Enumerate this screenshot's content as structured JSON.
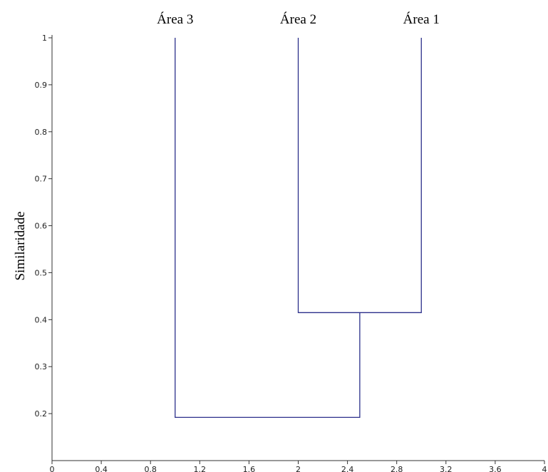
{
  "chart_data": {
    "type": "dendrogram",
    "ylabel": "Similaridade",
    "xlabel": "",
    "xlim": [
      0,
      4
    ],
    "ylim": [
      0.1,
      1
    ],
    "x_ticks": [
      "0",
      "0.4",
      "0.8",
      "1.2",
      "1.6",
      "2",
      "2.4",
      "2.8",
      "3.2",
      "3.6",
      "4"
    ],
    "x_tick_values": [
      0,
      0.4,
      0.8,
      1.2,
      1.6,
      2,
      2.4,
      2.8,
      3.2,
      3.6,
      4
    ],
    "y_ticks": [
      "0.2",
      "0.3",
      "0.4",
      "0.5",
      "0.6",
      "0.7",
      "0.8",
      "0.9",
      "1"
    ],
    "y_tick_values": [
      0.2,
      0.3,
      0.4,
      0.5,
      0.6,
      0.7,
      0.8,
      0.9,
      1
    ],
    "leaves": [
      {
        "label": "Área 3",
        "x": 1
      },
      {
        "label": "Área 2",
        "x": 2
      },
      {
        "label": "Área 1",
        "x": 3
      }
    ],
    "merges": [
      {
        "left_x": 2,
        "right_x": 3,
        "left_top": 1,
        "right_top": 1,
        "similarity": 0.415,
        "node_x": 2.5
      },
      {
        "left_x": 1,
        "right_x": 2.5,
        "left_top": 1,
        "right_top": 0.415,
        "similarity": 0.192,
        "node_x": 1.75
      }
    ],
    "line_color": "#2b2f8a",
    "grid": false
  }
}
